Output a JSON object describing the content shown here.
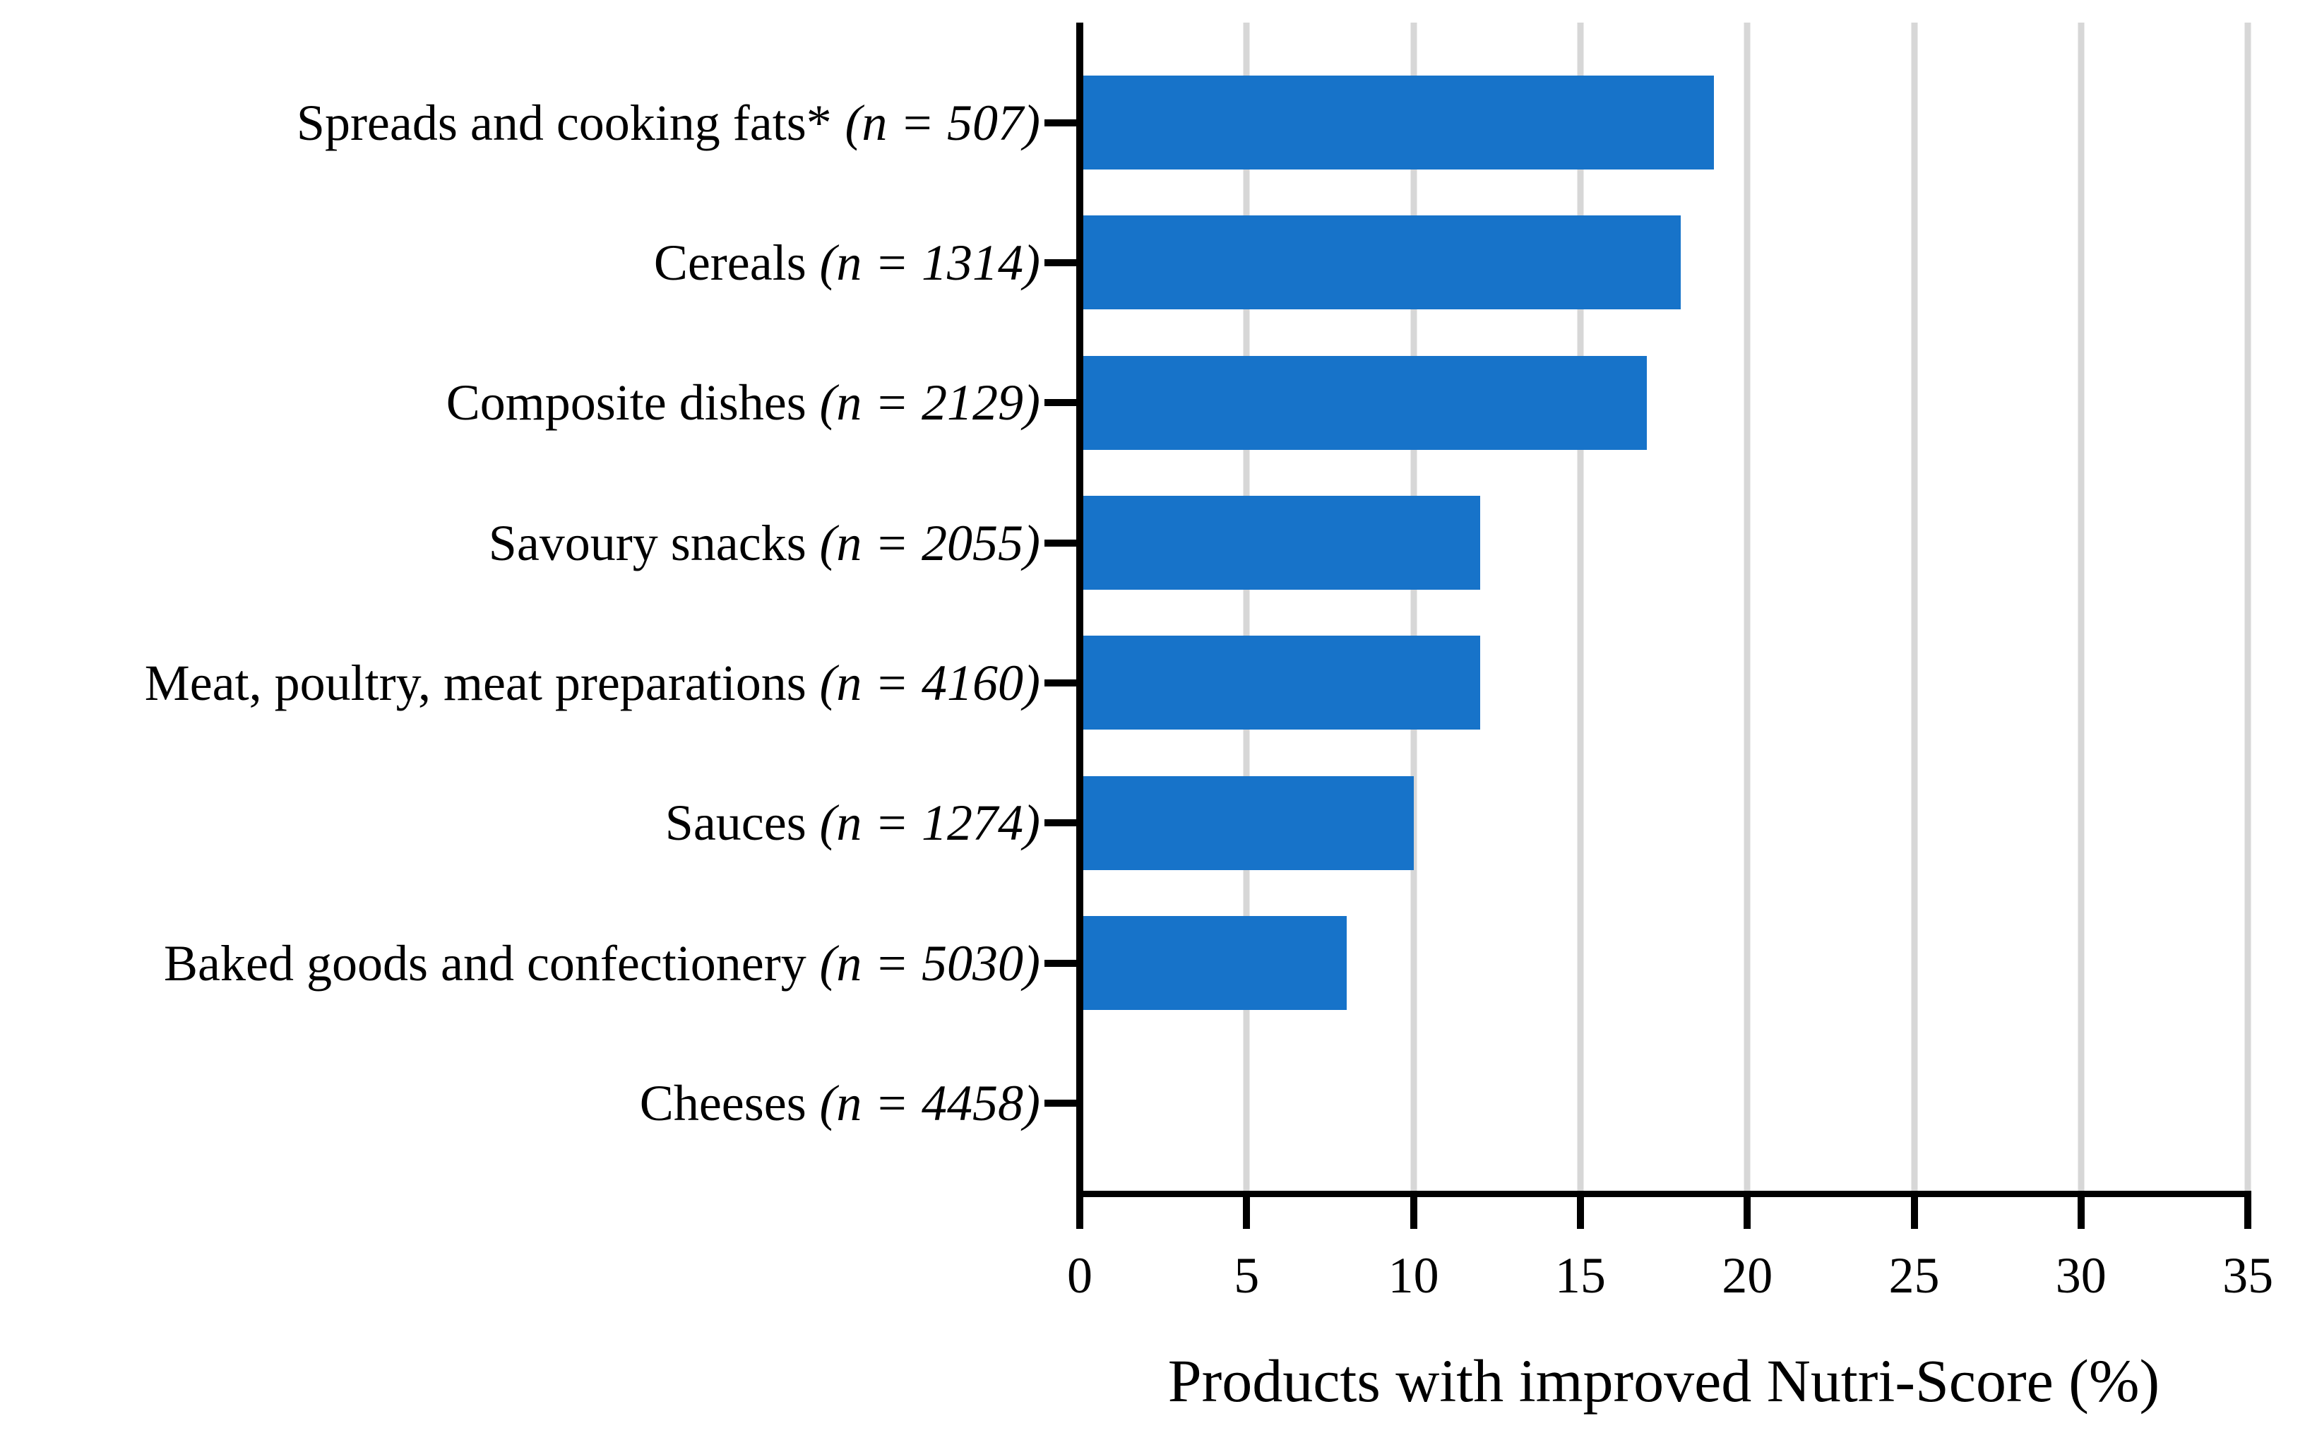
{
  "chart_data": {
    "type": "bar",
    "orientation": "horizontal",
    "title": "",
    "xlabel": "Products with improved Nutri-Score (%)",
    "ylabel": "",
    "xlim": [
      0,
      35
    ],
    "xticks": [
      0,
      5,
      10,
      15,
      20,
      25,
      30,
      35
    ],
    "grid": "vertical gridlines at each x tick",
    "legend_position": "none",
    "bar_color": "#1773c9",
    "gridline_color": "#d7d7d7",
    "axis_color": "#000000",
    "bars": [
      {
        "label": "Spreads and cooking fats*",
        "n": "(n = 507)"
      },
      {
        "label": "Cereals",
        "n": "(n = 1314)"
      },
      {
        "label": "Composite dishes",
        "n": "(n = 2129)"
      },
      {
        "label": "Savoury snacks",
        "n": "(n = 2055)"
      },
      {
        "label": "Meat, poultry, meat preparations",
        "n": "(n = 4160)"
      },
      {
        "label": "Sauces",
        "n": "(n = 1274)"
      },
      {
        "label": "Baked goods and confectionery",
        "n": "(n = 5030)"
      },
      {
        "label": "Cheeses",
        "n": "(n = 4458)"
      }
    ],
    "categories": [
      "Spreads and cooking fats* (n = 507)",
      "Cereals (n = 1314)",
      "Composite dishes (n = 2129)",
      "Savoury snacks (n = 2055)",
      "Meat, poultry, meat preparations (n = 4160)",
      "Sauces (n = 1274)",
      "Baked goods and confectionery (n = 5030)",
      "Cheeses (n = 4458)"
    ],
    "values": [
      19,
      18,
      17,
      12,
      12,
      10,
      8,
      0
    ]
  }
}
